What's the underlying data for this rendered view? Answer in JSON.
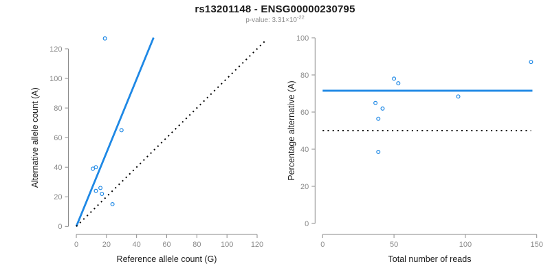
{
  "header": {
    "title": "rs13201148 - ENSG00000230795",
    "subtitle_prefix": "p-value: 3.31×10",
    "subtitle_exponent": "-22"
  },
  "colors": {
    "accent_blue": "#1e88e5",
    "line_black": "#000000",
    "axis_gray": "#8a8a8a",
    "tick_label_gray": "#8a8a8a",
    "axis_title_color": "#1a1a1a"
  },
  "chart_data": [
    {
      "type": "scatter",
      "side": "left",
      "xlabel": "Reference allele count (G)",
      "ylabel": "Alternative allele count (A)",
      "xlim": [
        0,
        120
      ],
      "ylim": [
        0,
        120
      ],
      "xticks": [
        0,
        20,
        40,
        60,
        80,
        100,
        120
      ],
      "yticks": [
        0,
        20,
        40,
        60,
        80,
        100,
        120
      ],
      "grid": false,
      "legend": null,
      "points": [
        [
          11,
          39
        ],
        [
          13,
          40
        ],
        [
          13,
          24
        ],
        [
          16,
          26
        ],
        [
          17,
          22
        ],
        [
          24,
          15
        ],
        [
          19,
          127
        ],
        [
          30,
          65
        ]
      ],
      "lines": [
        {
          "name": "fit-line",
          "color": "blue",
          "dashed": false,
          "pts": [
            [
              0,
              0
            ],
            [
              51.3,
              127.6
            ]
          ]
        },
        {
          "name": "identity-line",
          "color": "black",
          "dashed": true,
          "pts": [
            [
              0,
              0
            ],
            [
              126.5,
              126.5
            ]
          ]
        }
      ]
    },
    {
      "type": "scatter",
      "side": "right",
      "xlabel": "Total number of reads",
      "ylabel": "Percentage alternative (A)",
      "xlim": [
        0,
        150
      ],
      "ylim": [
        0,
        100
      ],
      "xticks": [
        0,
        50,
        100,
        150
      ],
      "yticks": [
        0,
        20,
        40,
        60,
        80,
        100
      ],
      "grid": false,
      "legend": null,
      "points": [
        [
          50,
          78
        ],
        [
          53,
          75.5
        ],
        [
          37,
          64.9
        ],
        [
          42,
          61.9
        ],
        [
          39,
          56.4
        ],
        [
          39,
          38.5
        ],
        [
          146,
          87
        ],
        [
          95,
          68.4
        ]
      ],
      "lines": [
        {
          "name": "mean-percentage-line",
          "color": "blue",
          "dashed": false,
          "pts": [
            [
              0,
              71.5
            ],
            [
              147,
              71.5
            ]
          ]
        },
        {
          "name": "fifty-percent-line",
          "color": "black",
          "dashed": true,
          "pts": [
            [
              0,
              50
            ],
            [
              146,
              50
            ]
          ]
        }
      ]
    }
  ]
}
